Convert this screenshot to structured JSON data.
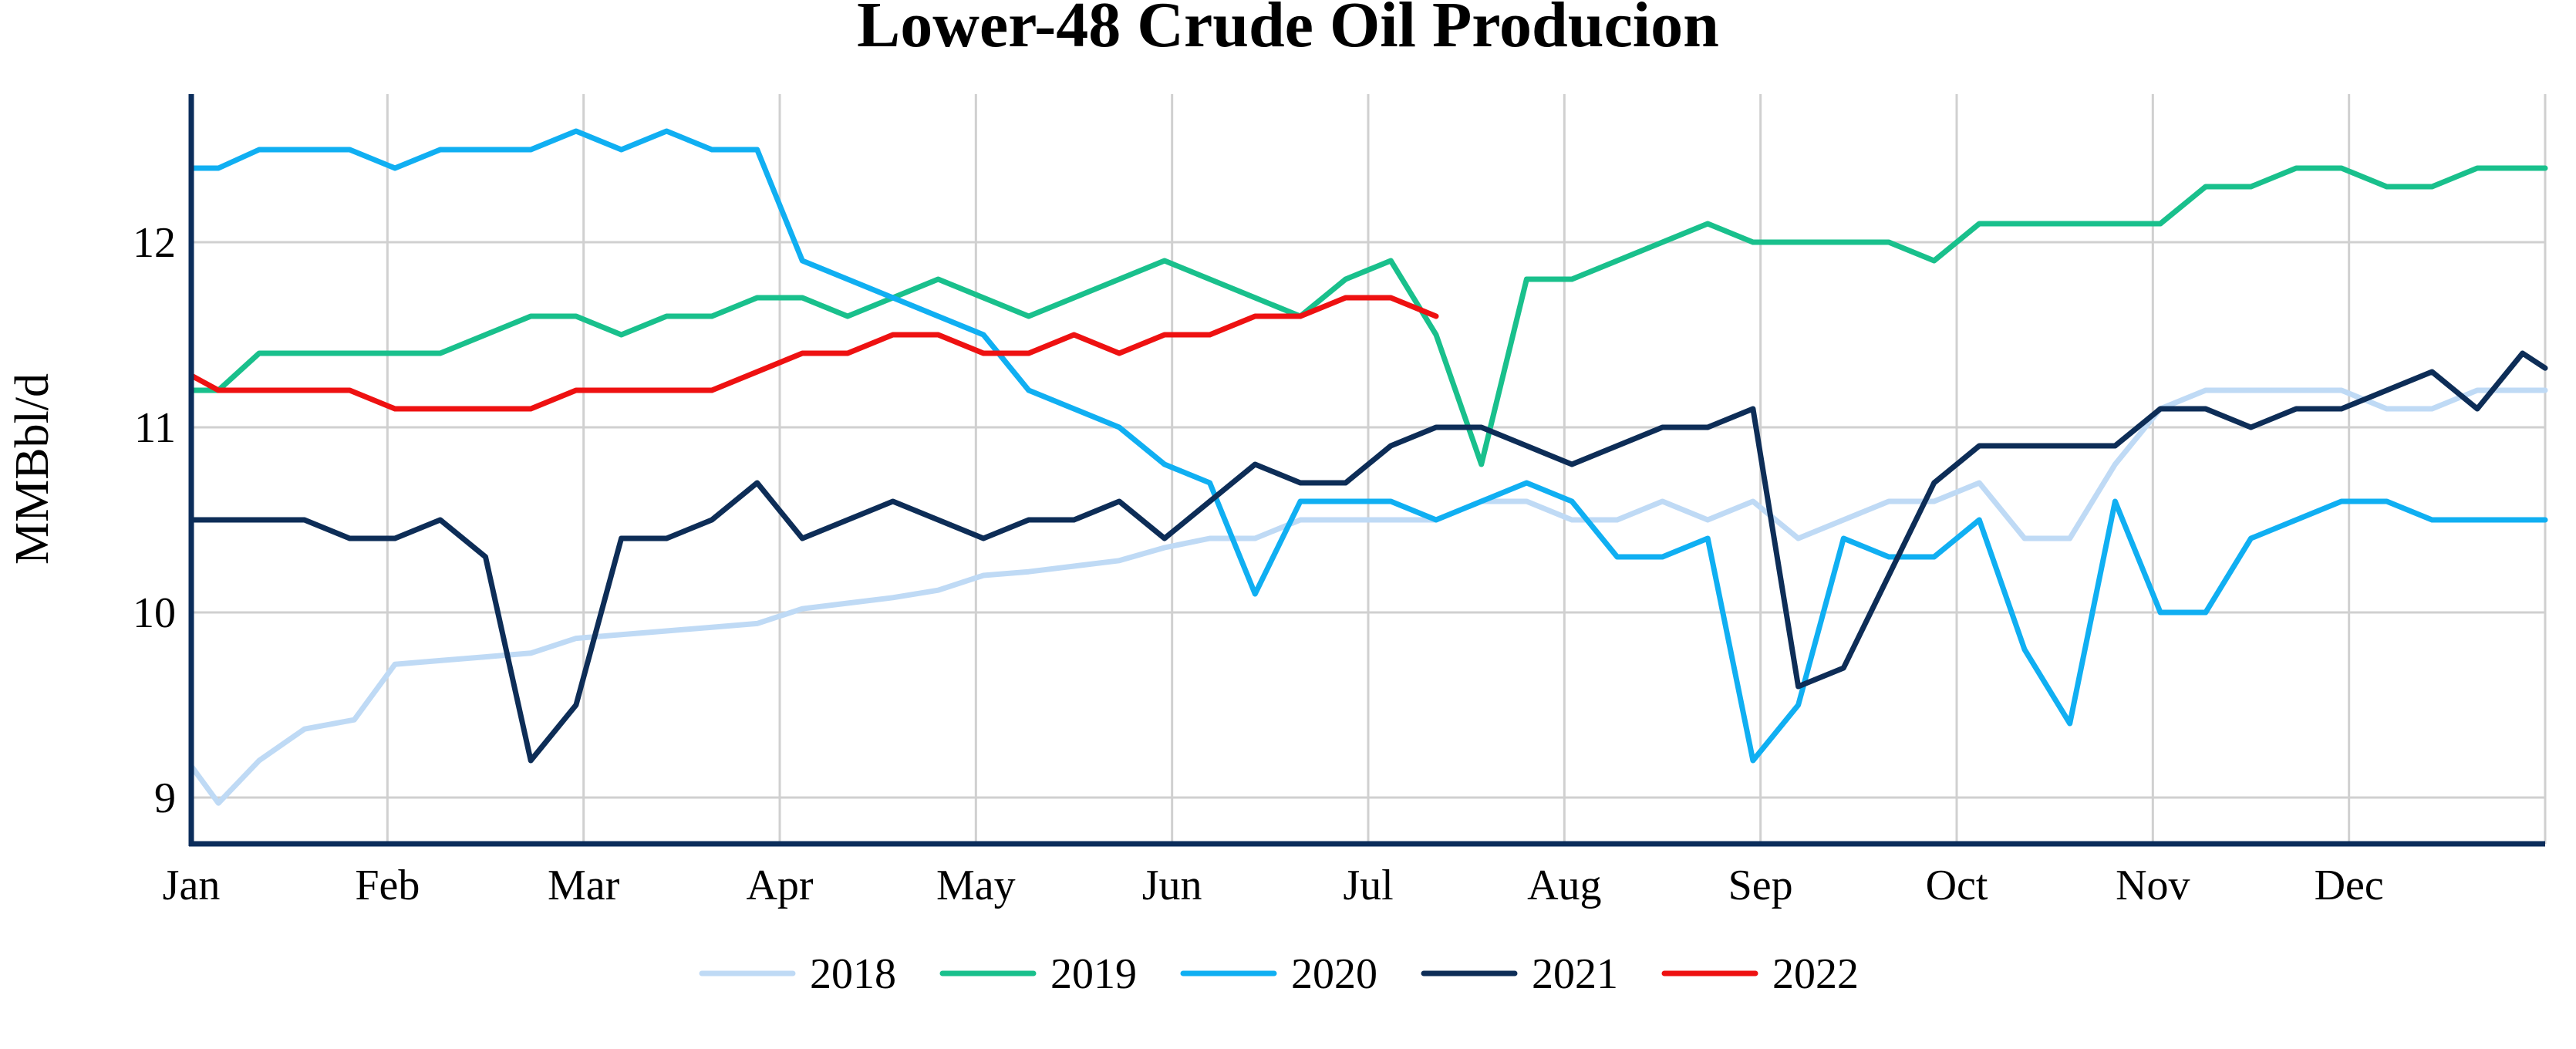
{
  "chart_data": {
    "type": "line",
    "title": "Lower-48 Crude Oil Producion",
    "ylabel": "MMBbl/d",
    "xlabel": "",
    "x_ticks": [
      "Jan",
      "Feb",
      "Mar",
      "Apr",
      "May",
      "Jun",
      "Jul",
      "Aug",
      "Sep",
      "Oct",
      "Nov",
      "Dec"
    ],
    "y_ticks": [
      9,
      10,
      11,
      12
    ],
    "xlim": [
      0,
      52
    ],
    "ylim": [
      8.75,
      12.8
    ],
    "grid": true,
    "legend_position": "bottom-center",
    "series": [
      {
        "name": "2018",
        "color": "#bfdaf5",
        "points": [
          [
            0,
            9.17
          ],
          [
            0.6,
            8.97
          ],
          [
            1.5,
            9.2
          ],
          [
            2.5,
            9.37
          ],
          [
            3.6,
            9.42
          ],
          [
            4.5,
            9.72
          ],
          [
            5.5,
            9.74
          ],
          [
            6.5,
            9.76
          ],
          [
            7.5,
            9.78
          ],
          [
            8.5,
            9.86
          ],
          [
            9.5,
            9.88
          ],
          [
            10.5,
            9.9
          ],
          [
            11.5,
            9.92
          ],
          [
            12.5,
            9.94
          ],
          [
            13.5,
            10.02
          ],
          [
            14.5,
            10.05
          ],
          [
            15.5,
            10.08
          ],
          [
            16.5,
            10.12
          ],
          [
            17.5,
            10.2
          ],
          [
            18.5,
            10.22
          ],
          [
            19.5,
            10.25
          ],
          [
            20.5,
            10.28
          ],
          [
            21.5,
            10.35
          ],
          [
            22.5,
            10.4
          ],
          [
            23.5,
            10.4
          ],
          [
            24.5,
            10.5
          ],
          [
            25.5,
            10.5
          ],
          [
            26.5,
            10.5
          ],
          [
            27.5,
            10.5
          ],
          [
            28.5,
            10.6
          ],
          [
            29.5,
            10.6
          ],
          [
            30.5,
            10.5
          ],
          [
            31.5,
            10.5
          ],
          [
            32.5,
            10.6
          ],
          [
            33.5,
            10.5
          ],
          [
            34.5,
            10.6
          ],
          [
            35.5,
            10.4
          ],
          [
            36.5,
            10.5
          ],
          [
            37.5,
            10.6
          ],
          [
            38.5,
            10.6
          ],
          [
            39.5,
            10.7
          ],
          [
            40.5,
            10.4
          ],
          [
            41.5,
            10.4
          ],
          [
            42.5,
            10.8
          ],
          [
            43.5,
            11.1
          ],
          [
            44.5,
            11.2
          ],
          [
            45.5,
            11.2
          ],
          [
            46.5,
            11.2
          ],
          [
            47.5,
            11.2
          ],
          [
            48.5,
            11.1
          ],
          [
            49.5,
            11.1
          ],
          [
            50.5,
            11.2
          ],
          [
            52,
            11.2
          ]
        ]
      },
      {
        "name": "2019",
        "color": "#19c08c",
        "points": [
          [
            0,
            11.2
          ],
          [
            0.6,
            11.2
          ],
          [
            1.5,
            11.4
          ],
          [
            2.5,
            11.4
          ],
          [
            3.5,
            11.4
          ],
          [
            4.5,
            11.4
          ],
          [
            5.5,
            11.4
          ],
          [
            6.5,
            11.5
          ],
          [
            7.5,
            11.6
          ],
          [
            8.5,
            11.6
          ],
          [
            9.5,
            11.5
          ],
          [
            10.5,
            11.6
          ],
          [
            11.5,
            11.6
          ],
          [
            12.5,
            11.7
          ],
          [
            13.5,
            11.7
          ],
          [
            14.5,
            11.6
          ],
          [
            15.5,
            11.7
          ],
          [
            16.5,
            11.8
          ],
          [
            17.5,
            11.7
          ],
          [
            18.5,
            11.6
          ],
          [
            19.5,
            11.7
          ],
          [
            20.5,
            11.8
          ],
          [
            21.5,
            11.9
          ],
          [
            22.5,
            11.8
          ],
          [
            23.5,
            11.7
          ],
          [
            24.5,
            11.6
          ],
          [
            25.5,
            11.8
          ],
          [
            26.5,
            11.9
          ],
          [
            27.5,
            11.5
          ],
          [
            28.5,
            10.8
          ],
          [
            29.5,
            11.8
          ],
          [
            30.5,
            11.8
          ],
          [
            31.5,
            11.9
          ],
          [
            32.5,
            12.0
          ],
          [
            33.5,
            12.1
          ],
          [
            34.5,
            12.0
          ],
          [
            35.5,
            12.0
          ],
          [
            36.5,
            12.0
          ],
          [
            37.5,
            12.0
          ],
          [
            38.5,
            11.9
          ],
          [
            39.5,
            12.1
          ],
          [
            40.5,
            12.1
          ],
          [
            41.5,
            12.1
          ],
          [
            42.5,
            12.1
          ],
          [
            43.5,
            12.1
          ],
          [
            44.5,
            12.3
          ],
          [
            45.5,
            12.3
          ],
          [
            46.5,
            12.4
          ],
          [
            47.5,
            12.4
          ],
          [
            48.5,
            12.3
          ],
          [
            49.5,
            12.3
          ],
          [
            50.5,
            12.4
          ],
          [
            52,
            12.4
          ]
        ]
      },
      {
        "name": "2020",
        "color": "#10aff2",
        "points": [
          [
            0,
            12.4
          ],
          [
            0.6,
            12.4
          ],
          [
            1.5,
            12.5
          ],
          [
            2.5,
            12.5
          ],
          [
            3.5,
            12.5
          ],
          [
            4.5,
            12.4
          ],
          [
            5.5,
            12.5
          ],
          [
            6.5,
            12.5
          ],
          [
            7.5,
            12.5
          ],
          [
            8.5,
            12.6
          ],
          [
            9.5,
            12.5
          ],
          [
            10.5,
            12.6
          ],
          [
            11.5,
            12.5
          ],
          [
            12.5,
            12.5
          ],
          [
            13.5,
            11.9
          ],
          [
            14.5,
            11.8
          ],
          [
            15.5,
            11.7
          ],
          [
            16.5,
            11.6
          ],
          [
            17.5,
            11.5
          ],
          [
            18.5,
            11.2
          ],
          [
            19.5,
            11.1
          ],
          [
            20.5,
            11.0
          ],
          [
            21.5,
            10.8
          ],
          [
            22.5,
            10.7
          ],
          [
            23.5,
            10.1
          ],
          [
            24.5,
            10.6
          ],
          [
            25.5,
            10.6
          ],
          [
            26.5,
            10.6
          ],
          [
            27.5,
            10.5
          ],
          [
            28.5,
            10.6
          ],
          [
            29.5,
            10.7
          ],
          [
            30.5,
            10.6
          ],
          [
            31.5,
            10.3
          ],
          [
            32.5,
            10.3
          ],
          [
            33.5,
            10.4
          ],
          [
            34.5,
            9.2
          ],
          [
            35.5,
            9.5
          ],
          [
            36.5,
            10.4
          ],
          [
            37.5,
            10.3
          ],
          [
            38.5,
            10.3
          ],
          [
            39.5,
            10.5
          ],
          [
            40.5,
            9.8
          ],
          [
            41.5,
            9.4
          ],
          [
            42.5,
            10.6
          ],
          [
            43.5,
            10.0
          ],
          [
            44.5,
            10.0
          ],
          [
            45.5,
            10.4
          ],
          [
            46.5,
            10.5
          ],
          [
            47.5,
            10.6
          ],
          [
            48.5,
            10.6
          ],
          [
            49.5,
            10.5
          ],
          [
            50.5,
            10.5
          ],
          [
            52,
            10.5
          ]
        ]
      },
      {
        "name": "2021",
        "color": "#0d2d57",
        "points": [
          [
            0,
            10.5
          ],
          [
            0.6,
            10.5
          ],
          [
            1.5,
            10.5
          ],
          [
            2.5,
            10.5
          ],
          [
            3.5,
            10.4
          ],
          [
            4.5,
            10.4
          ],
          [
            5.5,
            10.5
          ],
          [
            6.5,
            10.3
          ],
          [
            7.5,
            9.2
          ],
          [
            8.5,
            9.5
          ],
          [
            9.5,
            10.4
          ],
          [
            10.5,
            10.4
          ],
          [
            11.5,
            10.5
          ],
          [
            12.5,
            10.7
          ],
          [
            13.5,
            10.4
          ],
          [
            14.5,
            10.5
          ],
          [
            15.5,
            10.6
          ],
          [
            16.5,
            10.5
          ],
          [
            17.5,
            10.4
          ],
          [
            18.5,
            10.5
          ],
          [
            19.5,
            10.5
          ],
          [
            20.5,
            10.6
          ],
          [
            21.5,
            10.4
          ],
          [
            22.5,
            10.6
          ],
          [
            23.5,
            10.8
          ],
          [
            24.5,
            10.7
          ],
          [
            25.5,
            10.7
          ],
          [
            26.5,
            10.9
          ],
          [
            27.5,
            11.0
          ],
          [
            28.5,
            11.0
          ],
          [
            29.5,
            10.9
          ],
          [
            30.5,
            10.8
          ],
          [
            31.5,
            10.9
          ],
          [
            32.5,
            11.0
          ],
          [
            33.5,
            11.0
          ],
          [
            34.5,
            11.1
          ],
          [
            35.5,
            9.6
          ],
          [
            36.5,
            9.7
          ],
          [
            37.5,
            10.2
          ],
          [
            38.5,
            10.7
          ],
          [
            39.5,
            10.9
          ],
          [
            40.5,
            10.9
          ],
          [
            41.5,
            10.9
          ],
          [
            42.5,
            10.9
          ],
          [
            43.5,
            11.1
          ],
          [
            44.5,
            11.1
          ],
          [
            45.5,
            11.0
          ],
          [
            46.5,
            11.1
          ],
          [
            47.5,
            11.1
          ],
          [
            48.5,
            11.2
          ],
          [
            49.5,
            11.3
          ],
          [
            50.5,
            11.1
          ],
          [
            51.5,
            11.4
          ],
          [
            52,
            11.32
          ]
        ]
      },
      {
        "name": "2022",
        "color": "#ee1111",
        "points": [
          [
            0,
            11.28
          ],
          [
            0.6,
            11.2
          ],
          [
            1.5,
            11.2
          ],
          [
            2.5,
            11.2
          ],
          [
            3.5,
            11.2
          ],
          [
            4.5,
            11.1
          ],
          [
            5.5,
            11.1
          ],
          [
            6.5,
            11.1
          ],
          [
            7.5,
            11.1
          ],
          [
            8.5,
            11.2
          ],
          [
            9.5,
            11.2
          ],
          [
            10.5,
            11.2
          ],
          [
            11.5,
            11.2
          ],
          [
            12.5,
            11.3
          ],
          [
            13.5,
            11.4
          ],
          [
            14.5,
            11.4
          ],
          [
            15.5,
            11.5
          ],
          [
            16.5,
            11.5
          ],
          [
            17.5,
            11.4
          ],
          [
            18.5,
            11.4
          ],
          [
            19.5,
            11.5
          ],
          [
            20.5,
            11.4
          ],
          [
            21.5,
            11.5
          ],
          [
            22.5,
            11.5
          ],
          [
            23.5,
            11.6
          ],
          [
            24.5,
            11.6
          ],
          [
            25.5,
            11.7
          ],
          [
            26.5,
            11.7
          ],
          [
            27.5,
            11.6
          ]
        ]
      }
    ]
  }
}
